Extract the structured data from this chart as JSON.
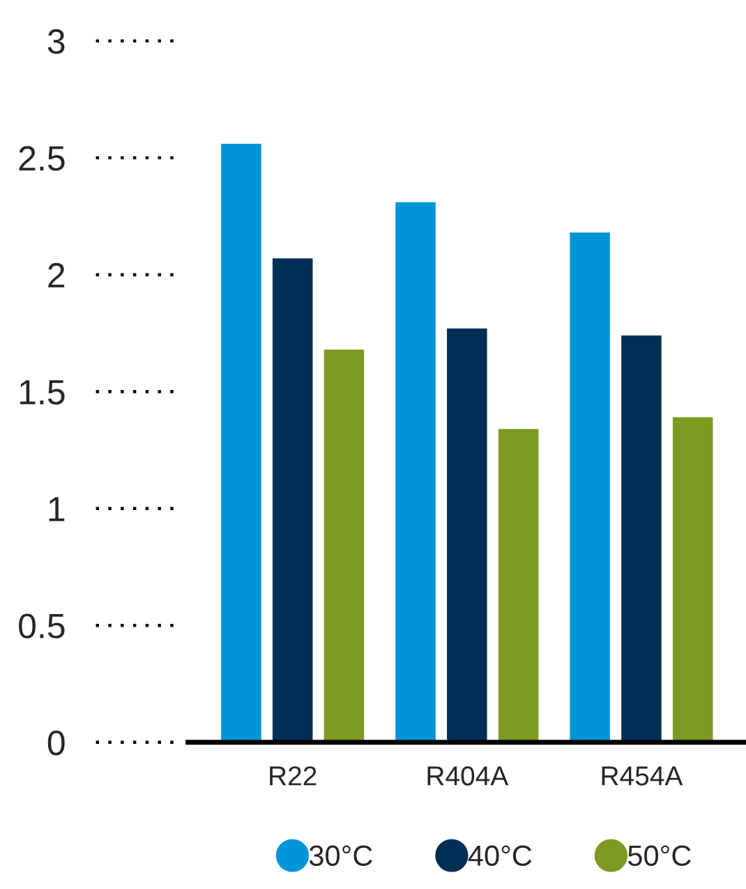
{
  "chart_data": {
    "type": "bar",
    "categories": [
      "R22",
      "R404A",
      "R454A"
    ],
    "series": [
      {
        "name": "30°C",
        "color": "#0095da",
        "values": [
          2.56,
          2.31,
          2.18
        ]
      },
      {
        "name": "40°C",
        "color": "#002f56",
        "values": [
          2.07,
          1.77,
          1.74
        ]
      },
      {
        "name": "50°C",
        "color": "#7d9a23",
        "values": [
          1.68,
          1.34,
          1.39
        ]
      }
    ],
    "ylim": [
      0,
      3
    ],
    "yticks": [
      0,
      0.5,
      1,
      1.5,
      2,
      2.5,
      3
    ],
    "grid": false,
    "legend": "bottom"
  }
}
